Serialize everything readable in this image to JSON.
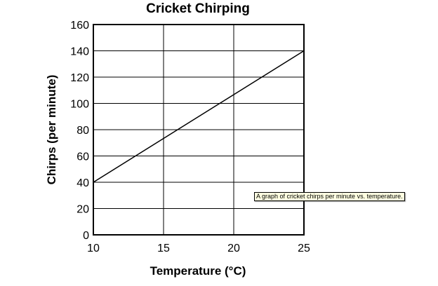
{
  "chart_data": {
    "type": "line",
    "title": "Cricket Chirping",
    "xlabel": "Temperature (°C)",
    "ylabel": "Chirps (per minute)",
    "x": [
      10,
      25
    ],
    "series": [
      {
        "values": [
          40,
          140
        ]
      }
    ],
    "xlim": [
      10,
      25
    ],
    "ylim": [
      0,
      160
    ],
    "xticks": [
      10,
      15,
      20,
      25
    ],
    "yticks": [
      0,
      20,
      40,
      60,
      80,
      100,
      120,
      140,
      160
    ],
    "grid": true,
    "colors": {
      "line": "#000000",
      "grid": "#000000",
      "background": "#ffffff"
    }
  },
  "tooltip": {
    "text": "A graph of cricket chirps per minute vs. temperature."
  }
}
